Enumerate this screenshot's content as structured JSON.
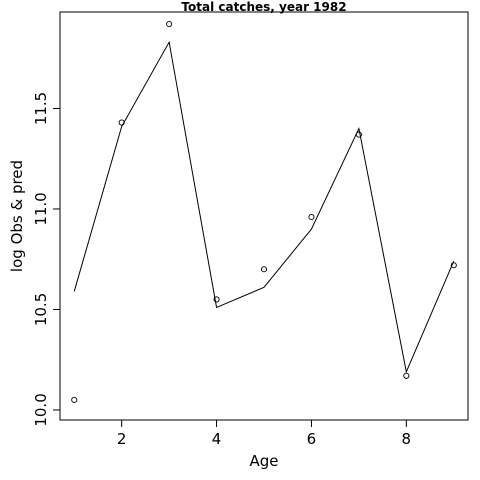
{
  "chart_data": {
    "type": "line",
    "title": "Total catches, year 1982",
    "xlabel": "Age",
    "ylabel": "log Obs & pred",
    "xlim": [
      0.7,
      9.3
    ],
    "ylim": [
      9.95,
      11.98
    ],
    "x_ticks": [
      2,
      4,
      6,
      8
    ],
    "y_ticks": [
      10.0,
      10.5,
      11.0,
      11.5
    ],
    "x_tick_labels": [
      "2",
      "4",
      "6",
      "8"
    ],
    "y_tick_labels": [
      "10.0",
      "10.5",
      "11.0",
      "11.5"
    ],
    "x_axis_range": [
      2,
      9
    ],
    "y_axis_range": [
      10.0,
      11.98
    ],
    "grid": false,
    "series": [
      {
        "type": "line",
        "x": [
          1,
          2,
          3,
          4,
          5,
          6,
          7,
          8,
          9
        ],
        "y": [
          10.59,
          11.41,
          11.83,
          10.51,
          10.61,
          10.9,
          11.4,
          10.19,
          10.74
        ]
      },
      {
        "type": "scatter",
        "marker": "open-circle",
        "x": [
          1,
          2,
          3,
          4,
          5,
          6,
          7,
          8,
          9
        ],
        "y": [
          10.05,
          11.43,
          11.92,
          10.55,
          10.7,
          10.96,
          11.37,
          10.17,
          10.72
        ]
      }
    ]
  }
}
